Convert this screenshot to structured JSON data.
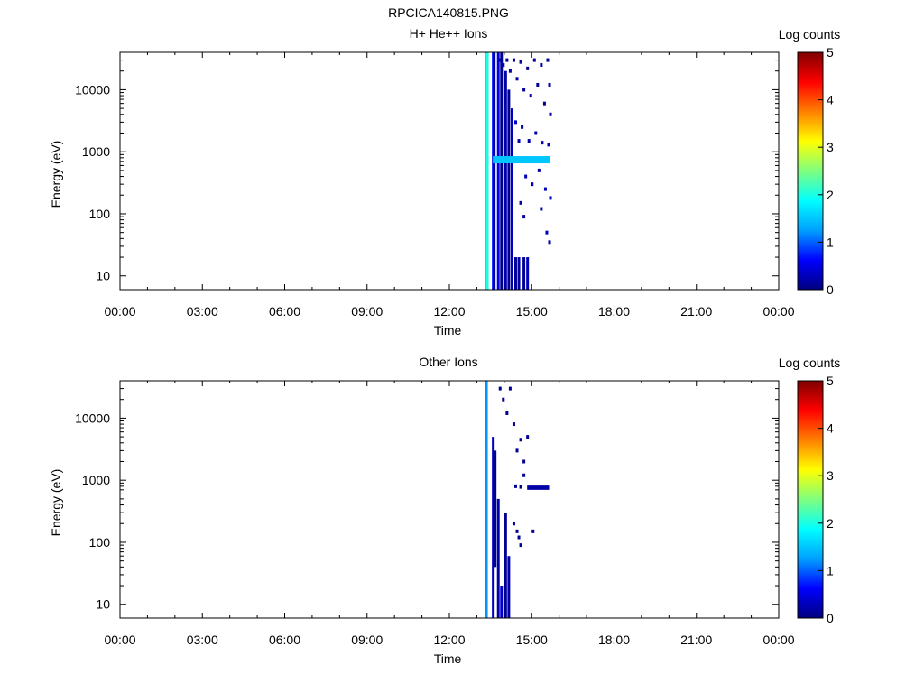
{
  "figure_title": "RPCICA140815.PNG",
  "chart_data": [
    {
      "type": "heatmap",
      "title": "H+ He++ Ions",
      "xlabel": "Time",
      "ylabel": "Energy (eV)",
      "x_scale": "time",
      "xlim": [
        "00:00",
        "24:00"
      ],
      "x_ticks": [
        "00:00",
        "03:00",
        "06:00",
        "09:00",
        "12:00",
        "15:00",
        "18:00",
        "21:00",
        "00:00"
      ],
      "y_scale": "log",
      "ylim": [
        6,
        40000
      ],
      "y_ticks": [
        10,
        100,
        1000,
        10000
      ],
      "y_tick_labels": [
        "10",
        "100",
        "1000",
        "10000"
      ],
      "colorbar": {
        "label": "Log counts",
        "range": [
          0,
          5
        ],
        "ticks": [
          "0",
          "1",
          "2",
          "3",
          "4",
          "5"
        ],
        "colormap": "rainbow",
        "colors": [
          "#00007f",
          "#0000ff",
          "#00a0ff",
          "#00ffff",
          "#7fff7f",
          "#ffff00",
          "#ff8000",
          "#ff0000",
          "#7f0000"
        ]
      },
      "columns": [
        {
          "time": "13:18",
          "e_min": 6,
          "e_max": 40000,
          "value": 1.5
        },
        {
          "time": "13:20",
          "e_min": 6,
          "e_max": 40000,
          "value": 2.0
        },
        {
          "time": "13:33",
          "e_min": 6,
          "e_max": 40000,
          "value": 0.7
        },
        {
          "time": "13:35",
          "e_min": 6,
          "e_max": 40000,
          "value": 0.2
        },
        {
          "time": "13:44",
          "e_min": 6,
          "e_max": 40000,
          "value": 0.5
        },
        {
          "time": "13:51",
          "e_min": 6,
          "e_max": 40000,
          "value": 0.1
        },
        {
          "time": "14:00",
          "e_min": 6,
          "e_max": 20000,
          "value": 0.2
        },
        {
          "time": "14:07",
          "e_min": 6,
          "e_max": 10000,
          "value": 0.1
        },
        {
          "time": "14:14",
          "e_min": 6,
          "e_max": 5000,
          "value": 0.3
        },
        {
          "time": "14:22",
          "e_min": 6,
          "e_max": 20,
          "value": 0.1
        },
        {
          "time": "14:29",
          "e_min": 6,
          "e_max": 20,
          "value": 0.2
        },
        {
          "time": "14:40",
          "e_min": 6,
          "e_max": 20,
          "value": 0.1
        },
        {
          "time": "14:48",
          "e_min": 6,
          "e_max": 20,
          "value": 0.3
        }
      ],
      "bands": [
        {
          "t_start": "13:35",
          "t_end": "15:40",
          "e_min": 650,
          "e_max": 850,
          "value": 1.5
        }
      ],
      "pixels": [
        {
          "time": "13:48",
          "energy": 30000,
          "value": 0.2
        },
        {
          "time": "13:55",
          "energy": 25000,
          "value": 0.2
        },
        {
          "time": "14:03",
          "energy": 30000,
          "value": 0.1
        },
        {
          "time": "14:10",
          "energy": 20000,
          "value": 0.2
        },
        {
          "time": "14:18",
          "energy": 30000,
          "value": 0.1
        },
        {
          "time": "14:25",
          "energy": 15000,
          "value": 0.2
        },
        {
          "time": "14:33",
          "energy": 28000,
          "value": 0.1
        },
        {
          "time": "14:40",
          "energy": 10000,
          "value": 0.2
        },
        {
          "time": "14:48",
          "energy": 22000,
          "value": 0.1
        },
        {
          "time": "14:55",
          "energy": 8000,
          "value": 0.2
        },
        {
          "time": "15:03",
          "energy": 30000,
          "value": 0.1
        },
        {
          "time": "15:10",
          "energy": 12000,
          "value": 0.1
        },
        {
          "time": "15:18",
          "energy": 25000,
          "value": 0.2
        },
        {
          "time": "15:25",
          "energy": 6000,
          "value": 0.1
        },
        {
          "time": "15:32",
          "energy": 30000,
          "value": 0.1
        },
        {
          "time": "15:36",
          "energy": 12000,
          "value": 0.2
        },
        {
          "time": "15:38",
          "energy": 4000,
          "value": 0.1
        },
        {
          "time": "14:22",
          "energy": 3000,
          "value": 0.3
        },
        {
          "time": "14:29",
          "energy": 1500,
          "value": 0.2
        },
        {
          "time": "14:36",
          "energy": 2500,
          "value": 0.2
        },
        {
          "time": "14:44",
          "energy": 400,
          "value": 0.3
        },
        {
          "time": "14:51",
          "energy": 1500,
          "value": 0.2
        },
        {
          "time": "14:58",
          "energy": 300,
          "value": 0.3
        },
        {
          "time": "15:06",
          "energy": 2000,
          "value": 0.2
        },
        {
          "time": "15:13",
          "energy": 500,
          "value": 0.2
        },
        {
          "time": "15:20",
          "energy": 1400,
          "value": 0.2
        },
        {
          "time": "15:27",
          "energy": 250,
          "value": 0.3
        },
        {
          "time": "15:34",
          "energy": 1300,
          "value": 0.2
        },
        {
          "time": "15:38",
          "energy": 180,
          "value": 0.3
        },
        {
          "time": "15:18",
          "energy": 120,
          "value": 0.2
        },
        {
          "time": "15:30",
          "energy": 50,
          "value": 0.3
        },
        {
          "time": "15:36",
          "energy": 35,
          "value": 0.2
        },
        {
          "time": "14:33",
          "energy": 150,
          "value": 0.2
        },
        {
          "time": "14:40",
          "energy": 90,
          "value": 0.2
        }
      ]
    },
    {
      "type": "heatmap",
      "title": "Other Ions",
      "xlabel": "Time",
      "ylabel": "Energy (eV)",
      "x_scale": "time",
      "xlim": [
        "00:00",
        "24:00"
      ],
      "x_ticks": [
        "00:00",
        "03:00",
        "06:00",
        "09:00",
        "12:00",
        "15:00",
        "18:00",
        "21:00",
        "00:00"
      ],
      "y_scale": "log",
      "ylim": [
        6,
        40000
      ],
      "y_ticks": [
        10,
        100,
        1000,
        10000
      ],
      "y_tick_labels": [
        "10",
        "100",
        "1000",
        "10000"
      ],
      "colorbar": {
        "label": "Log counts",
        "range": [
          0,
          5
        ],
        "ticks": [
          "0",
          "1",
          "2",
          "3",
          "4",
          "5"
        ],
        "colormap": "rainbow",
        "colors": [
          "#00007f",
          "#0000ff",
          "#00a0ff",
          "#00ffff",
          "#7fff7f",
          "#ffff00",
          "#ff8000",
          "#ff0000",
          "#7f0000"
        ]
      },
      "columns": [
        {
          "time": "13:18",
          "e_min": 6,
          "e_max": 40000,
          "value": 1.2
        },
        {
          "time": "13:33",
          "e_min": 6,
          "e_max": 5000,
          "value": 0.3
        },
        {
          "time": "13:37",
          "e_min": 40,
          "e_max": 3000,
          "value": 0.1
        },
        {
          "time": "13:44",
          "e_min": 6,
          "e_max": 500,
          "value": 0.2
        },
        {
          "time": "13:51",
          "e_min": 6,
          "e_max": 20,
          "value": 0.4
        },
        {
          "time": "14:00",
          "e_min": 6,
          "e_max": 300,
          "value": 0.1
        },
        {
          "time": "14:07",
          "e_min": 6,
          "e_max": 60,
          "value": 0.2
        }
      ],
      "bands": [
        {
          "t_start": "14:50",
          "t_end": "15:38",
          "e_min": 700,
          "e_max": 820,
          "value": 0.2
        }
      ],
      "pixels": [
        {
          "time": "13:48",
          "energy": 30000,
          "value": 0.1
        },
        {
          "time": "13:55",
          "energy": 20000,
          "value": 0.1
        },
        {
          "time": "14:03",
          "energy": 12000,
          "value": 0.1
        },
        {
          "time": "14:10",
          "energy": 30000,
          "value": 0.1
        },
        {
          "time": "14:18",
          "energy": 8000,
          "value": 0.1
        },
        {
          "time": "14:25",
          "energy": 3000,
          "value": 0.1
        },
        {
          "time": "14:33",
          "energy": 4500,
          "value": 0.1
        },
        {
          "time": "14:40",
          "energy": 2000,
          "value": 0.1
        },
        {
          "time": "14:48",
          "energy": 5000,
          "value": 0.1
        },
        {
          "time": "14:22",
          "energy": 800,
          "value": 0.1
        },
        {
          "time": "14:33",
          "energy": 780,
          "value": 0.1
        },
        {
          "time": "14:18",
          "energy": 200,
          "value": 0.1
        },
        {
          "time": "14:25",
          "energy": 150,
          "value": 0.1
        },
        {
          "time": "14:29",
          "energy": 120,
          "value": 0.1
        },
        {
          "time": "14:33",
          "energy": 90,
          "value": 0.1
        },
        {
          "time": "14:40",
          "energy": 1200,
          "value": 0.1
        },
        {
          "time": "15:00",
          "energy": 150,
          "value": 0.1
        }
      ]
    }
  ]
}
